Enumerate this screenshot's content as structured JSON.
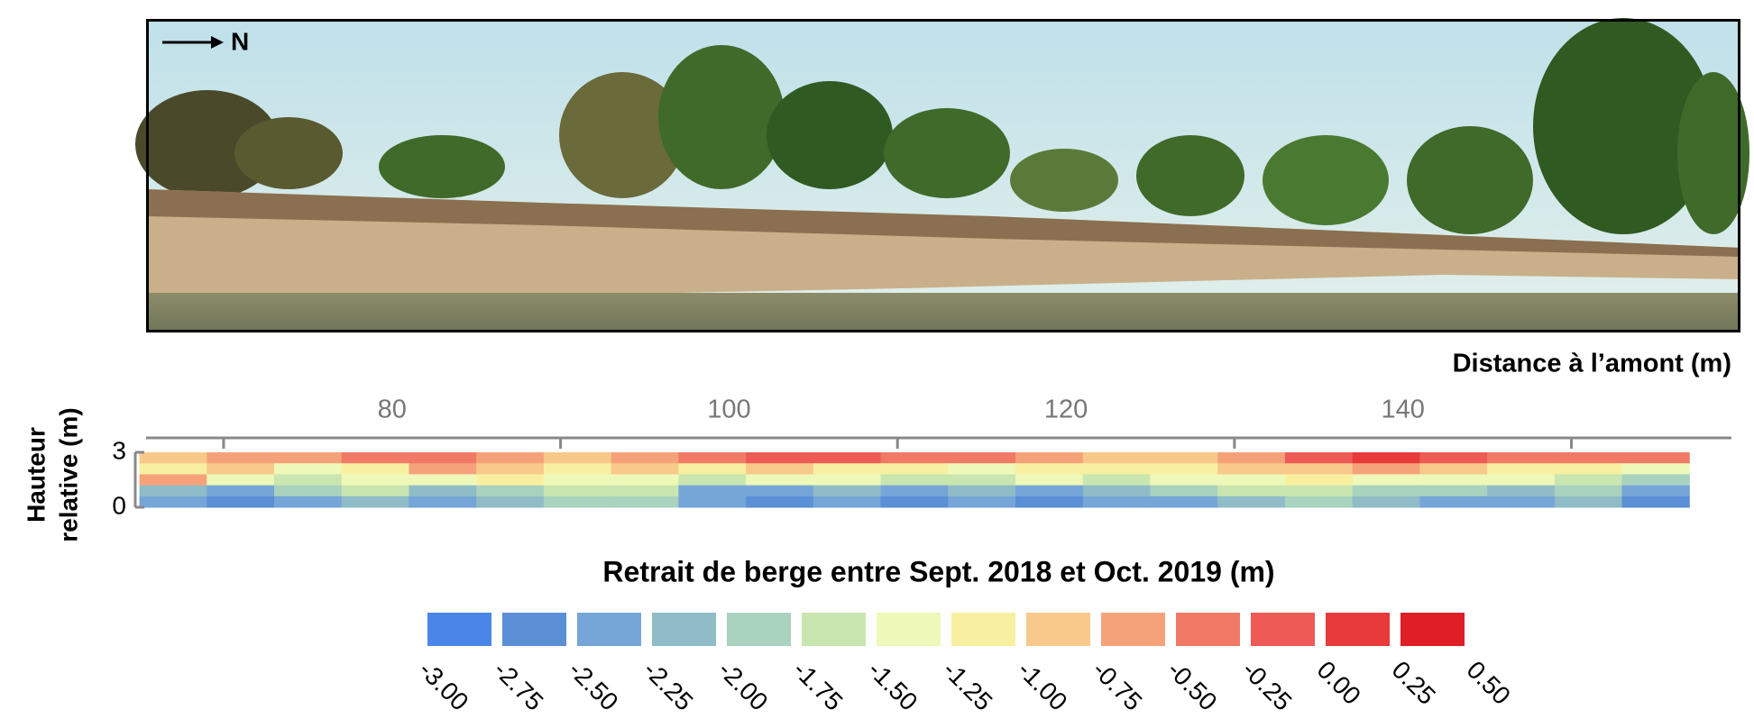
{
  "photo": {
    "north_label": "N"
  },
  "chart_data": {
    "type": "heatmap",
    "xlabel": "Distance à l’amont (m)",
    "ylabel": [
      "Hauteur",
      "relative (m)"
    ],
    "xlim": [
      65.4,
      159.5
    ],
    "xticks": [
      80,
      100,
      120,
      140
    ],
    "xminorticks": [
      70,
      90,
      110,
      130,
      150
    ],
    "ylim": [
      0,
      3
    ],
    "yticks": [
      0,
      3
    ],
    "x": [
      67,
      71,
      75,
      79,
      83,
      87,
      91,
      95,
      99,
      103,
      107,
      111,
      115,
      119,
      123,
      127,
      131,
      135,
      139,
      143,
      147,
      151,
      155
    ],
    "y": [
      2.7,
      2.1,
      1.5,
      0.9,
      0.3
    ],
    "z": [
      [
        -1.0,
        -0.75,
        -0.75,
        -0.5,
        -0.5,
        -0.75,
        -1.0,
        -0.75,
        -0.5,
        -0.25,
        -0.25,
        -0.5,
        -0.5,
        -0.75,
        -1.0,
        -1.0,
        -0.75,
        -0.25,
        0.0,
        -0.25,
        -0.5,
        -0.5,
        -0.5
      ],
      [
        -1.25,
        -1.0,
        -1.5,
        -1.25,
        -0.75,
        -1.0,
        -1.25,
        -1.0,
        -1.25,
        -1.0,
        -1.25,
        -1.25,
        -1.5,
        -1.25,
        -1.25,
        -1.25,
        -1.0,
        -1.0,
        -0.75,
        -1.0,
        -1.25,
        -1.25,
        -1.5
      ],
      [
        -0.75,
        -1.5,
        -1.75,
        -1.5,
        -1.5,
        -1.25,
        -1.5,
        -1.5,
        -1.75,
        -1.5,
        -1.5,
        -1.75,
        -1.75,
        -1.5,
        -1.75,
        -1.5,
        -1.5,
        -1.25,
        -1.5,
        -1.5,
        -1.5,
        -1.75,
        -2.0
      ],
      [
        -2.25,
        -2.5,
        -2.0,
        -1.75,
        -2.25,
        -2.0,
        -1.75,
        -1.75,
        -2.5,
        -2.5,
        -2.25,
        -2.5,
        -2.25,
        -2.5,
        -2.25,
        -2.0,
        -1.75,
        -1.75,
        -2.0,
        -2.0,
        -2.25,
        -2.0,
        -2.5
      ],
      [
        -2.5,
        -2.75,
        -2.5,
        -2.25,
        -2.5,
        -2.25,
        -2.0,
        -2.0,
        -2.5,
        -2.75,
        -2.5,
        -2.75,
        -2.5,
        -2.75,
        -2.5,
        -2.5,
        -2.25,
        -2.0,
        -2.25,
        -2.5,
        -2.5,
        -2.25,
        -2.75
      ]
    ],
    "colorbar": {
      "title": "Retrait de berge entre Sept. 2018 et Oct. 2019 (m)",
      "bins": [
        {
          "value": -3,
          "label": "-3.00"
        },
        {
          "value": -2.75,
          "label": "-2.75"
        },
        {
          "value": -2.5,
          "label": "-2.50"
        },
        {
          "value": -2.25,
          "label": "-2.25"
        },
        {
          "value": -2,
          "label": "-2.00"
        },
        {
          "value": -1.75,
          "label": "-1.75"
        },
        {
          "value": -1.5,
          "label": "-1.50"
        },
        {
          "value": -1.25,
          "label": "-1.25"
        },
        {
          "value": -1,
          "label": "-1.00"
        },
        {
          "value": -0.75,
          "label": "-0.75"
        },
        {
          "value": -0.5,
          "label": "-0.50"
        },
        {
          "value": -0.25,
          "label": "-0.25"
        },
        {
          "value": 0,
          "label": "0.00"
        },
        {
          "value": 0.25,
          "label": "0.25"
        },
        {
          "value": 0.5,
          "label": "0.50"
        }
      ],
      "colors": [
        "#4a86e8",
        "#5b8fd6",
        "#76a5d8",
        "#8fbcc6",
        "#a9d2bf",
        "#c9e6b0",
        "#eef8b8",
        "#f8f0a0",
        "#f8c98a",
        "#f5a27a",
        "#f07a66",
        "#ee5a55",
        "#e83a3a",
        "#e01e25"
      ]
    }
  }
}
